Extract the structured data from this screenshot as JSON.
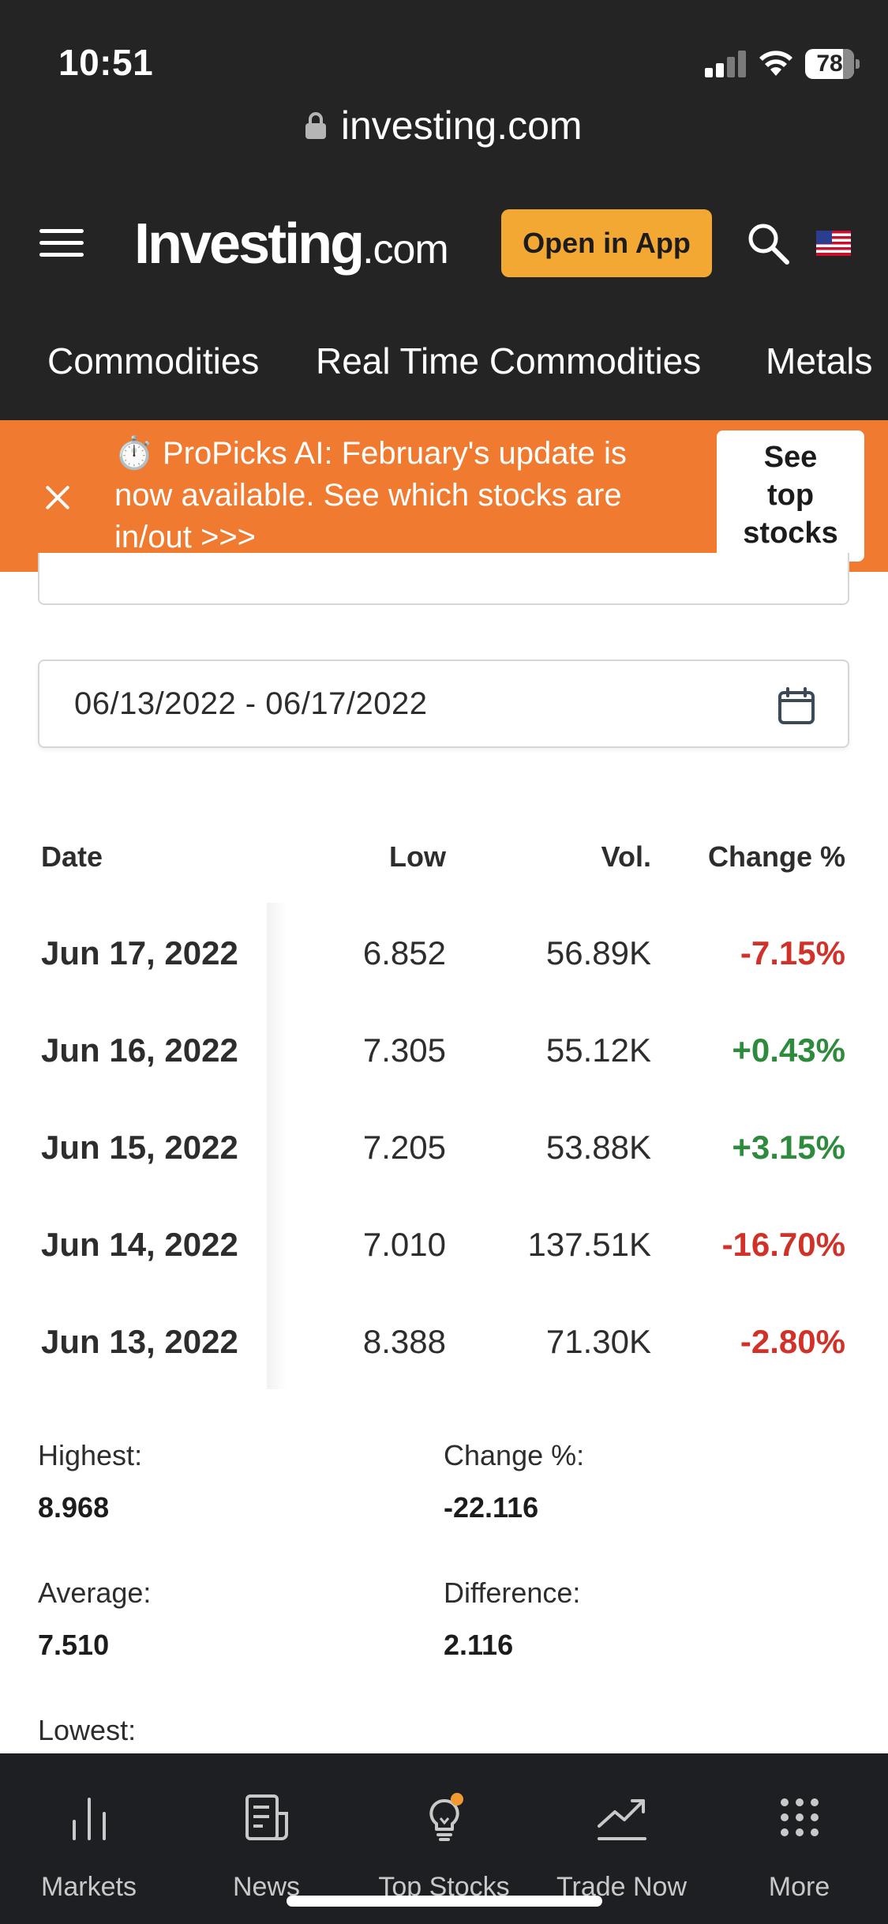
{
  "status_bar": {
    "time": "10:51",
    "battery": "78"
  },
  "browser": {
    "url": "investing.com"
  },
  "header": {
    "logo_main": "Investing",
    "logo_suffix": ".com",
    "open_in_app": "Open in App"
  },
  "nav_tabs": [
    "Commodities",
    "Real Time Commodities",
    "Metals"
  ],
  "promo": {
    "icon": "stopwatch-icon",
    "text_emoji": "⏱️",
    "text": "ProPicks AI: February's update is now available. See which stocks are in/out >>>",
    "button_line1": "See",
    "button_line2": "top",
    "button_line3": "stocks",
    "background": "#ef7a30"
  },
  "date_range": "06/13/2022 - 06/17/2022",
  "table": {
    "headers": {
      "date": "Date",
      "low": "Low",
      "vol": "Vol.",
      "change": "Change %"
    },
    "rows": [
      {
        "date": "Jun 17, 2022",
        "low": "6.852",
        "vol": "56.89K",
        "change": "-7.15%",
        "direction": "down"
      },
      {
        "date": "Jun 16, 2022",
        "low": "7.305",
        "vol": "55.12K",
        "change": "+0.43%",
        "direction": "up"
      },
      {
        "date": "Jun 15, 2022",
        "low": "7.205",
        "vol": "53.88K",
        "change": "+3.15%",
        "direction": "up"
      },
      {
        "date": "Jun 14, 2022",
        "low": "7.010",
        "vol": "137.51K",
        "change": "-16.70%",
        "direction": "down"
      },
      {
        "date": "Jun 13, 2022",
        "low": "8.388",
        "vol": "71.30K",
        "change": "-2.80%",
        "direction": "down"
      }
    ]
  },
  "summary": {
    "highest_label": "Highest:",
    "highest_value": "8.968",
    "change_label": "Change %:",
    "change_value": "-22.116",
    "average_label": "Average:",
    "average_value": "7.510",
    "difference_label": "Difference:",
    "difference_value": "2.116",
    "lowest_label": "Lowest:"
  },
  "bottom_nav": [
    {
      "label": "Markets",
      "icon": "bar-chart-icon"
    },
    {
      "label": "News",
      "icon": "newspaper-icon"
    },
    {
      "label": "Top Stocks",
      "icon": "lightbulb-icon"
    },
    {
      "label": "Trade Now",
      "icon": "trend-up-icon"
    },
    {
      "label": "More",
      "icon": "grid-icon"
    }
  ],
  "colors": {
    "header_bg": "#242424",
    "accent_button": "#f4a834",
    "negative": "#d0322a",
    "positive": "#2e8b3d",
    "bottom_nav_bg": "#1d1f22"
  }
}
